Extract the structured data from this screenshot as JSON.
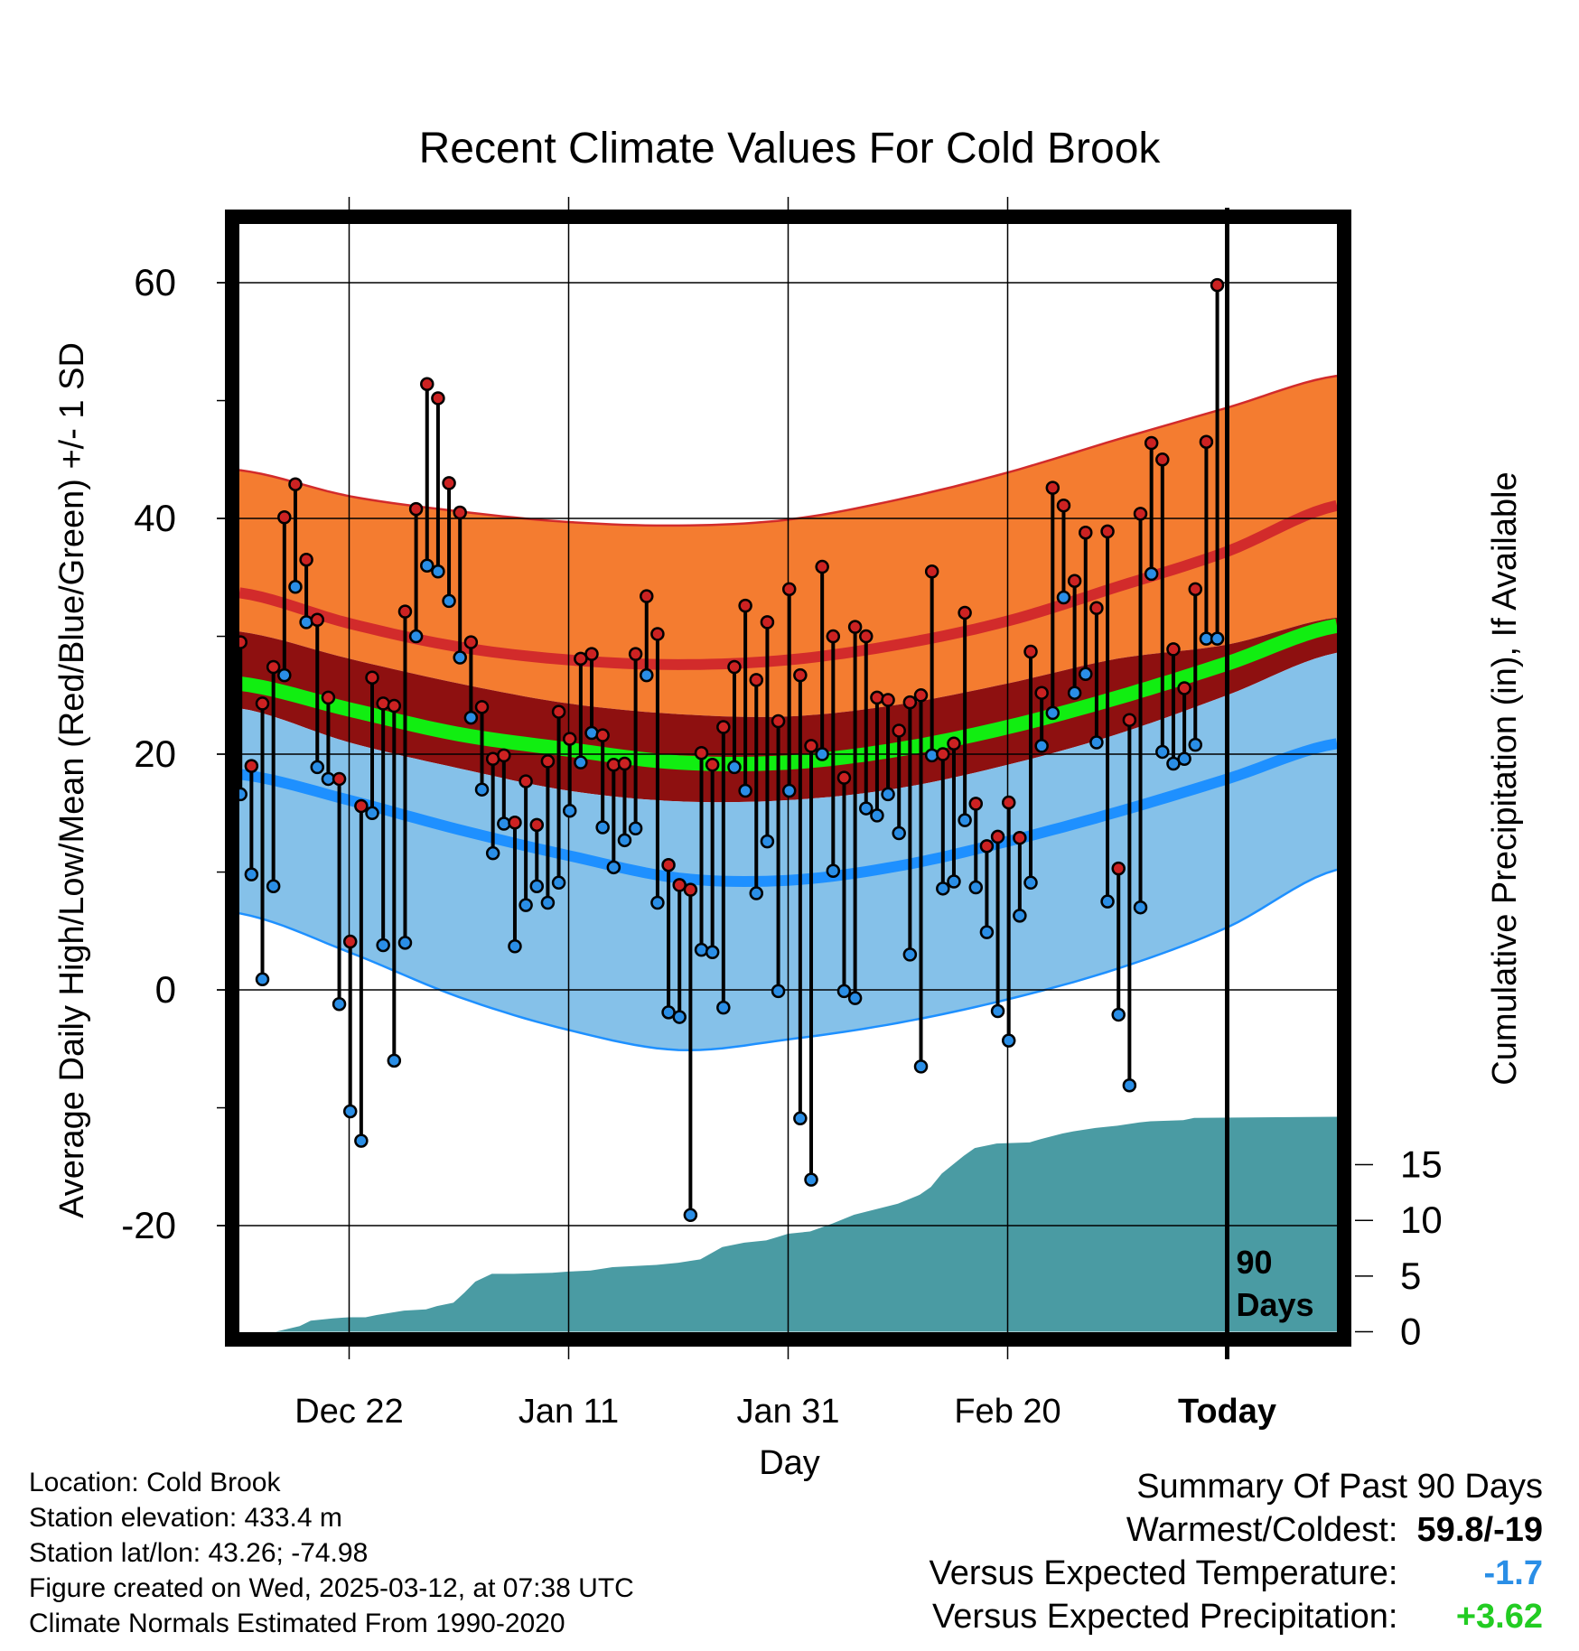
{
  "chart_data": {
    "type": "line",
    "title": "Recent Climate Values For Cold Brook",
    "xlabel": "Day",
    "ylabel_left": "Average Daily High/Low/Mean (Red/Blue/Green) +/- 1 SD",
    "ylabel_right": "Cumulative Precipitation (in), If Available",
    "ylim_left": [
      -29,
      65
    ],
    "ylim_right": [
      0,
      72
    ],
    "x_ticks": [
      {
        "day": 10,
        "label": "Dec 22"
      },
      {
        "day": 30,
        "label": "Jan 11"
      },
      {
        "day": 50,
        "label": "Jan 31"
      },
      {
        "day": 70,
        "label": "Feb 20"
      },
      {
        "day": 90,
        "label": "Today"
      }
    ],
    "y_ticks_left": [
      "-20",
      "0",
      "20",
      "40",
      "60"
    ],
    "y_ticks_right": [
      "0",
      "5",
      "10",
      "15"
    ],
    "today_marker": {
      "day": 90,
      "label_line1": "90",
      "label_line2": "Days"
    },
    "normals": {
      "days": [
        0,
        10,
        20,
        30,
        40,
        50,
        60,
        70,
        80,
        90,
        100
      ],
      "high_mean": [
        33.7,
        31.1,
        29.1,
        28.0,
        27.6,
        28.0,
        29.3,
        31.3,
        34.2,
        37.2,
        41.1
      ],
      "high_upper": [
        44.1,
        41.9,
        40.6,
        39.7,
        39.4,
        39.9,
        41.6,
        43.9,
        46.7,
        49.4,
        52.1
      ],
      "mean_mean": [
        26.0,
        23.8,
        21.7,
        20.4,
        19.3,
        19.3,
        20.4,
        22.3,
        24.8,
        27.7,
        30.9
      ],
      "mean_upper": [
        30.4,
        28.1,
        26.0,
        24.3,
        23.4,
        23.2,
        24.2,
        26.0,
        28.1,
        29.3,
        31.6
      ],
      "mean_lower": [
        23.9,
        21.0,
        18.8,
        16.9,
        16.0,
        16.1,
        17.1,
        19.1,
        21.7,
        25.0,
        28.6
      ],
      "low_mean": [
        18.3,
        16.1,
        13.6,
        11.4,
        9.5,
        9.3,
        10.5,
        12.6,
        15.1,
        17.9,
        20.9
      ],
      "low_lower": [
        6.5,
        3.2,
        -0.6,
        -3.4,
        -5.1,
        -4.2,
        -2.8,
        -0.8,
        1.8,
        5.3,
        10.2
      ]
    },
    "series": [
      {
        "name": "High",
        "color": "#cc2222",
        "values": [
          29.5,
          19.0,
          24.3,
          27.4,
          40.1,
          42.9,
          36.5,
          31.4,
          24.8,
          17.9,
          4.1,
          15.6,
          26.5,
          24.3,
          24.1,
          32.1,
          40.8,
          51.4,
          50.2,
          43.0,
          40.5,
          29.5,
          24.0,
          19.6,
          19.9,
          14.2,
          17.7,
          14.0,
          19.4,
          23.6,
          21.3,
          28.1,
          28.5,
          21.6,
          19.1,
          19.2,
          28.5,
          33.4,
          30.2,
          10.6,
          8.9,
          8.5,
          20.1,
          19.1,
          22.3,
          27.4,
          32.6,
          26.3,
          31.2,
          22.8,
          34.0,
          26.7,
          20.7,
          35.9,
          30.0,
          18.0,
          30.8,
          30.0,
          24.8,
          24.6,
          22.0,
          24.4,
          25.0,
          35.5,
          20.0,
          20.9,
          32.0,
          15.8,
          12.2,
          13.0,
          15.9,
          12.9,
          28.7,
          25.2,
          42.6,
          41.1,
          34.7,
          38.8,
          32.4,
          38.9,
          10.3,
          22.9,
          40.4,
          46.4,
          45.0,
          28.9,
          25.6,
          34.0,
          46.5,
          59.8
        ]
      },
      {
        "name": "Low",
        "color": "#2a8ee6",
        "values": [
          16.6,
          9.8,
          0.9,
          8.8,
          26.7,
          34.2,
          31.2,
          18.9,
          17.9,
          -1.2,
          -10.3,
          -12.8,
          15.0,
          3.8,
          -6.0,
          4.0,
          30.0,
          36.0,
          35.5,
          33.0,
          28.2,
          23.1,
          17.0,
          11.6,
          14.1,
          3.7,
          7.2,
          8.8,
          7.4,
          9.1,
          15.2,
          19.3,
          21.8,
          13.8,
          10.4,
          12.7,
          13.7,
          26.7,
          7.4,
          -1.9,
          -2.3,
          -19.1,
          3.4,
          3.2,
          -1.5,
          18.9,
          16.9,
          8.2,
          12.6,
          -0.1,
          16.9,
          -10.9,
          -16.1,
          20.0,
          10.1,
          -0.1,
          -0.7,
          15.4,
          14.8,
          16.6,
          13.3,
          3.0,
          -6.5,
          19.9,
          8.6,
          9.2,
          14.4,
          8.7,
          4.9,
          -1.8,
          -4.3,
          6.3,
          9.1,
          20.7,
          23.5,
          33.3,
          25.2,
          26.8,
          21.0,
          7.5,
          -2.1,
          -8.1,
          7.0,
          35.3,
          20.2,
          19.2,
          19.6,
          20.8,
          29.8,
          29.8
        ]
      }
    ],
    "precip_cumulative": {
      "days": [
        3.3,
        5.5,
        6.5,
        8.5,
        10,
        11.5,
        12.5,
        15,
        17,
        18,
        19.5,
        20.5,
        21.5,
        23,
        25,
        28.5,
        30,
        32,
        34,
        36,
        38,
        40,
        42,
        44,
        46,
        48,
        49,
        50,
        52,
        54,
        56,
        58,
        60,
        62,
        63,
        64,
        66,
        67,
        68.5,
        69,
        72,
        73,
        75,
        76,
        78,
        80,
        82,
        83,
        86,
        87,
        100
      ],
      "values": [
        0,
        0.5,
        1.0,
        1.2,
        1.3,
        1.3,
        1.5,
        1.9,
        2.0,
        2.3,
        2.6,
        3.5,
        4.5,
        5.2,
        5.2,
        5.3,
        5.4,
        5.5,
        5.8,
        5.9,
        6.0,
        6.2,
        6.5,
        7.6,
        8.0,
        8.2,
        8.5,
        8.8,
        9.0,
        9.7,
        10.5,
        11.0,
        11.5,
        12.3,
        13.0,
        14.2,
        15.8,
        16.5,
        16.8,
        16.9,
        17.0,
        17.3,
        17.8,
        18.0,
        18.3,
        18.5,
        18.8,
        18.9,
        19.0,
        19.2,
        19.3
      ]
    }
  },
  "info": {
    "location": "Location: Cold Brook",
    "elevation": "Station elevation: 433.4 m",
    "latlon": "Station lat/lon: 43.26; -74.98",
    "created": "Figure created on Wed, 2025-03-12, at 07:38 UTC",
    "normals": "Climate Normals Estimated From 1990-2020"
  },
  "summary": {
    "title": "Summary Of Past 90 Days",
    "warmest_label": "Warmest/Coldest:",
    "warmest_value": "59.8/-19",
    "temp_label": "Versus Expected Temperature:",
    "temp_value": "-1.7",
    "temp_color": "#2a8ee6",
    "precip_label": "Versus Expected Precipitation:",
    "precip_value": "+3.62",
    "precip_color": "#22cc22"
  },
  "colors": {
    "high_band": "#f47c30",
    "high_line": "#d22b2b",
    "mean_band": "#8e1010",
    "mean_line": "#11ee11",
    "low_band": "#85c1e9",
    "low_line": "#1e90ff",
    "precip": "#4a9ba3"
  }
}
